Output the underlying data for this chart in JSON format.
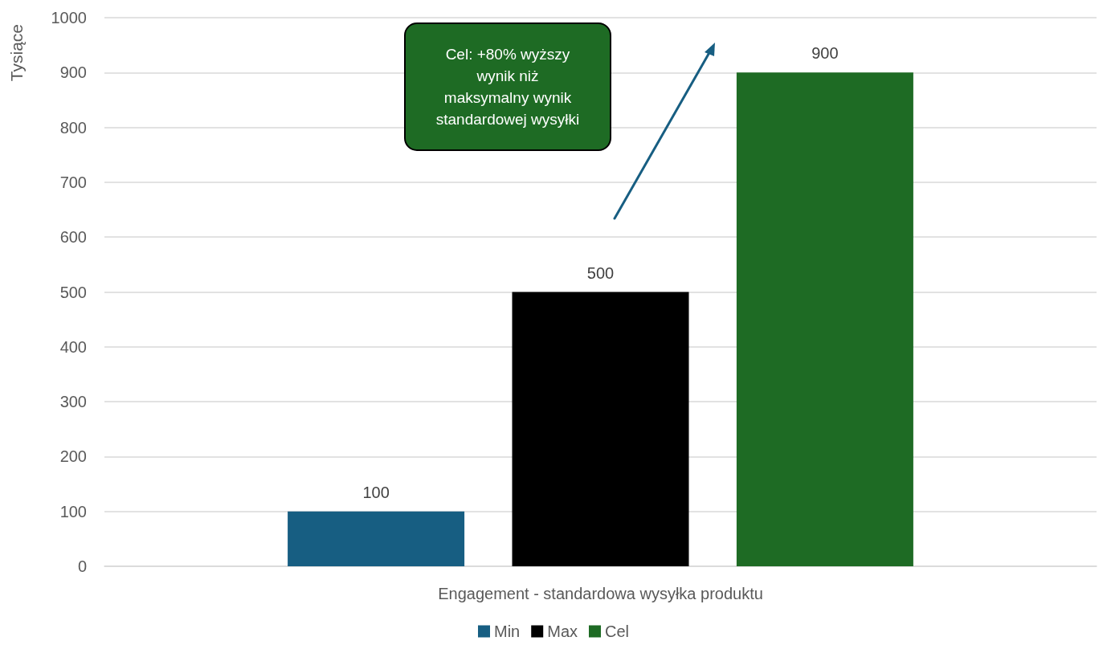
{
  "chart_data": {
    "type": "bar",
    "categories": [
      "Engagement - standardowa wysyłka produktu"
    ],
    "series": [
      {
        "name": "Min",
        "color": "#175e82",
        "values": [
          100
        ]
      },
      {
        "name": "Max",
        "color": "#000000",
        "values": [
          500
        ]
      },
      {
        "name": "Cel",
        "color": "#1e6b24",
        "values": [
          900
        ]
      }
    ],
    "ylabel": "Tysiące",
    "ylim": [
      0,
      1000
    ],
    "yticks": [
      0,
      100,
      200,
      300,
      400,
      500,
      600,
      700,
      800,
      900,
      1000
    ],
    "grid": "y",
    "legend": "bottom",
    "data_labels": true,
    "annotations": [
      "Cel: +80% wyższy wynik niż maksymalny wynik standardowej wysyłki"
    ]
  }
}
